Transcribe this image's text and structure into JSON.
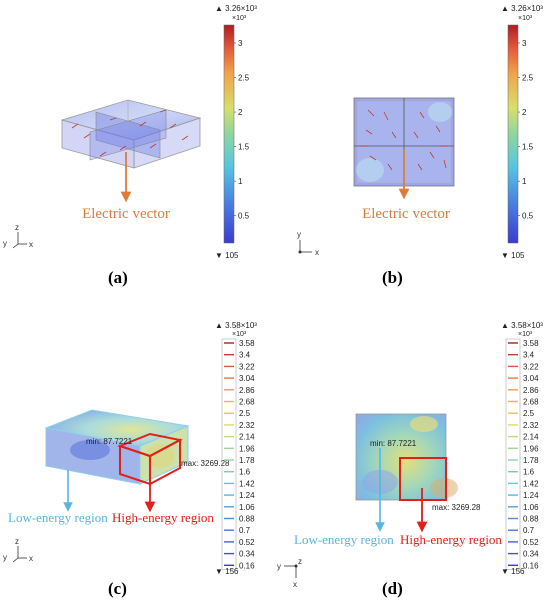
{
  "panels": {
    "a": {
      "label": "(a)",
      "annotation": "Electric vector",
      "colorbar": {
        "max_label": "▲ 3.26×10³",
        "min_label": "▼ 105",
        "ticks": [
          "3",
          "2.5",
          "2",
          "1.5",
          "1",
          "0.5"
        ],
        "tick_values": [
          3,
          2.5,
          2,
          1.5,
          1,
          0.5
        ],
        "min": 0.105,
        "max": 3.26
      },
      "axes": {
        "z": "z",
        "y": "y",
        "x": "x"
      }
    },
    "b": {
      "label": "(b)",
      "annotation": "Electric vector",
      "colorbar": {
        "max_label": "▲ 3.26×10³",
        "min_label": "▼ 105",
        "ticks": [
          "3",
          "2.5",
          "2",
          "1.5",
          "1",
          "0.5"
        ],
        "tick_values": [
          3,
          2.5,
          2,
          1.5,
          1,
          0.5
        ],
        "min": 0.105,
        "max": 3.26
      },
      "axes": {
        "y": "y",
        "x": "x"
      }
    },
    "c": {
      "label": "(c)",
      "min_text": "min: 87.7221",
      "max_text": "max: 3269.28",
      "low_region": "Low-energy region",
      "high_region": "High-energy region",
      "colorbar": {
        "max_label": "▲ 3.58×10³",
        "min_label": "▼ 156",
        "ticks": [
          "3.58",
          "3.4",
          "3.22",
          "3.04",
          "2.86",
          "2.68",
          "2.5",
          "2.32",
          "2.14",
          "1.96",
          "1.78",
          "1.6",
          "1.42",
          "1.24",
          "1.06",
          "0.88",
          "0.7",
          "0.52",
          "0.34",
          "0.16"
        ]
      },
      "axes": {
        "z": "z",
        "y": "y",
        "x": "x"
      }
    },
    "d": {
      "label": "(d)",
      "min_text": "min: 87.7221",
      "max_text": "max: 3269.28",
      "low_region": "Low-energy region",
      "high_region": "High-energy region",
      "colorbar": {
        "max_label": "▲ 3.58×10³",
        "min_label": "▼ 156",
        "ticks": [
          "3.58",
          "3.4",
          "3.22",
          "3.04",
          "2.86",
          "2.68",
          "2.5",
          "2.32",
          "2.14",
          "1.96",
          "1.78",
          "1.6",
          "1.42",
          "1.24",
          "1.06",
          "0.88",
          "0.7",
          "0.52",
          "0.34",
          "0.16"
        ]
      },
      "axes": {
        "y": "y",
        "z": "z",
        "x": "x"
      }
    }
  },
  "colors": {
    "arrow_orange": "#e07b3a",
    "highlight_red": "#e0201b",
    "low_blue": "#5ab4e0",
    "vector_red": "#c0392b"
  }
}
